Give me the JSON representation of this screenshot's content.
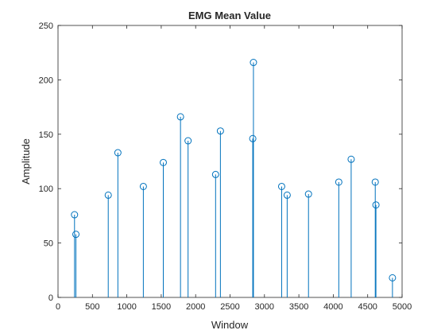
{
  "chart_data": {
    "type": "stem",
    "title": "EMG Mean Value",
    "xlabel": "Window",
    "ylabel": "Amplitude",
    "xlim": [
      0,
      5000
    ],
    "ylim": [
      0,
      250
    ],
    "xticks": [
      0,
      500,
      1000,
      1500,
      2000,
      2500,
      3000,
      3500,
      4000,
      4500,
      5000
    ],
    "yticks": [
      0,
      50,
      100,
      150,
      200,
      250
    ],
    "grid": false,
    "box": true,
    "colors": {
      "stem": "#0072BD",
      "axes": "#262626",
      "background": "#ffffff"
    },
    "series": [
      {
        "x": [
          240,
          260,
          730,
          870,
          1240,
          1530,
          1780,
          1890,
          2290,
          2360,
          2830,
          2840,
          3250,
          3330,
          3640,
          4080,
          4260,
          4610,
          4620,
          4860
        ],
        "y": [
          76,
          58,
          94,
          133,
          102,
          124,
          166,
          144,
          113,
          153,
          146,
          216,
          102,
          94,
          95,
          106,
          127,
          106,
          85,
          18
        ]
      }
    ]
  }
}
